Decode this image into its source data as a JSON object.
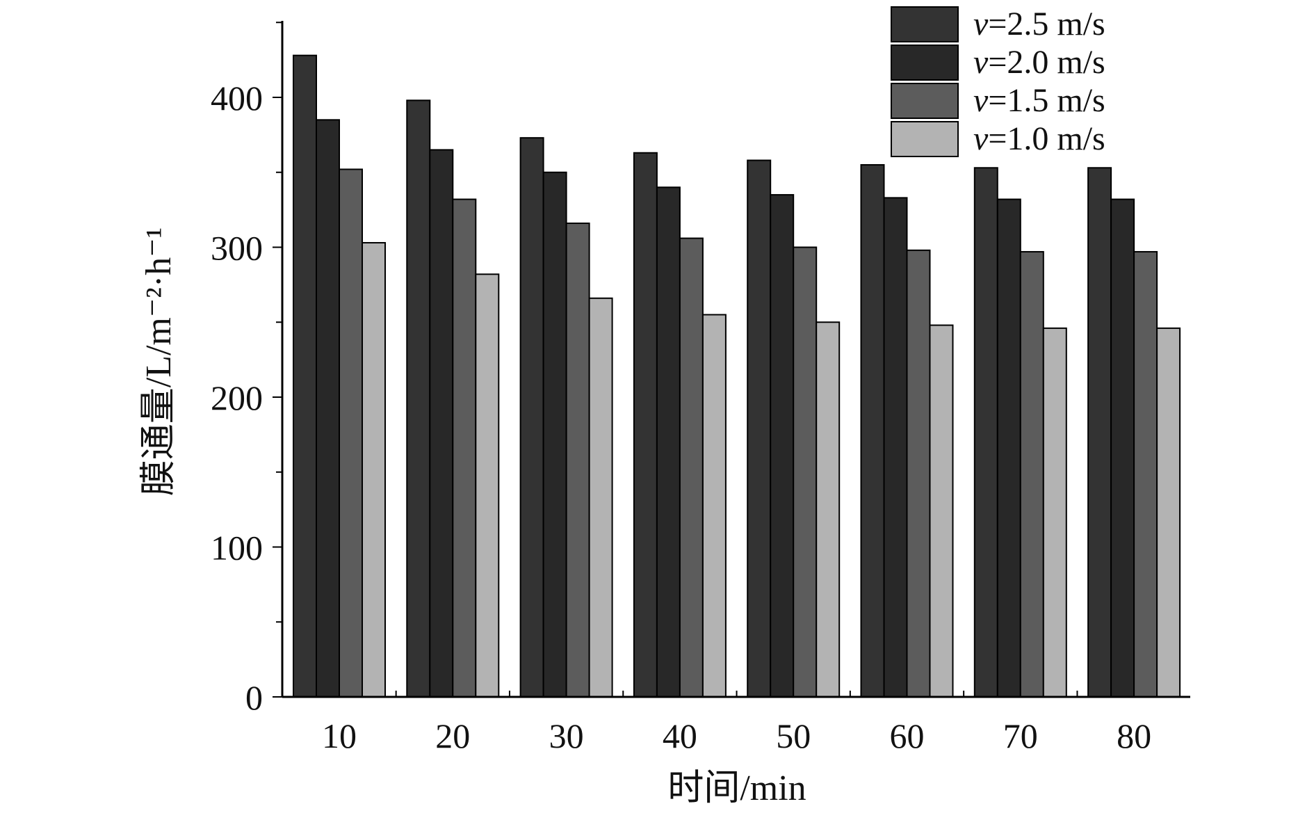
{
  "chart_data": {
    "type": "bar",
    "xlabel": "时间/min",
    "ylabel": "膜通量/L/m⁻²·h⁻¹",
    "categories": [
      "10",
      "20",
      "30",
      "40",
      "50",
      "60",
      "70",
      "80"
    ],
    "ylim": [
      0,
      450
    ],
    "yticks": [
      0,
      100,
      200,
      300,
      400
    ],
    "legend_position": "top-right",
    "grid": false,
    "series": [
      {
        "name": "v=2.5 m/s",
        "var": "v",
        "value_text": "=2.5 m/s",
        "color": "#333333",
        "values": [
          428,
          398,
          373,
          363,
          358,
          355,
          353,
          353
        ]
      },
      {
        "name": "v=2.0 m/s",
        "var": "v",
        "value_text": "=2.0 m/s",
        "color": "#282828",
        "values": [
          385,
          365,
          350,
          340,
          335,
          333,
          332,
          332
        ]
      },
      {
        "name": "v=1.5 m/s",
        "var": "v",
        "value_text": "=1.5 m/s",
        "color": "#5c5c5c",
        "values": [
          352,
          332,
          316,
          306,
          300,
          298,
          297,
          297
        ]
      },
      {
        "name": "v=1.0 m/s",
        "var": "v",
        "value_text": "=1.0 m/s",
        "color": "#b3b3b3",
        "values": [
          303,
          282,
          266,
          255,
          250,
          248,
          246,
          246
        ]
      }
    ]
  }
}
